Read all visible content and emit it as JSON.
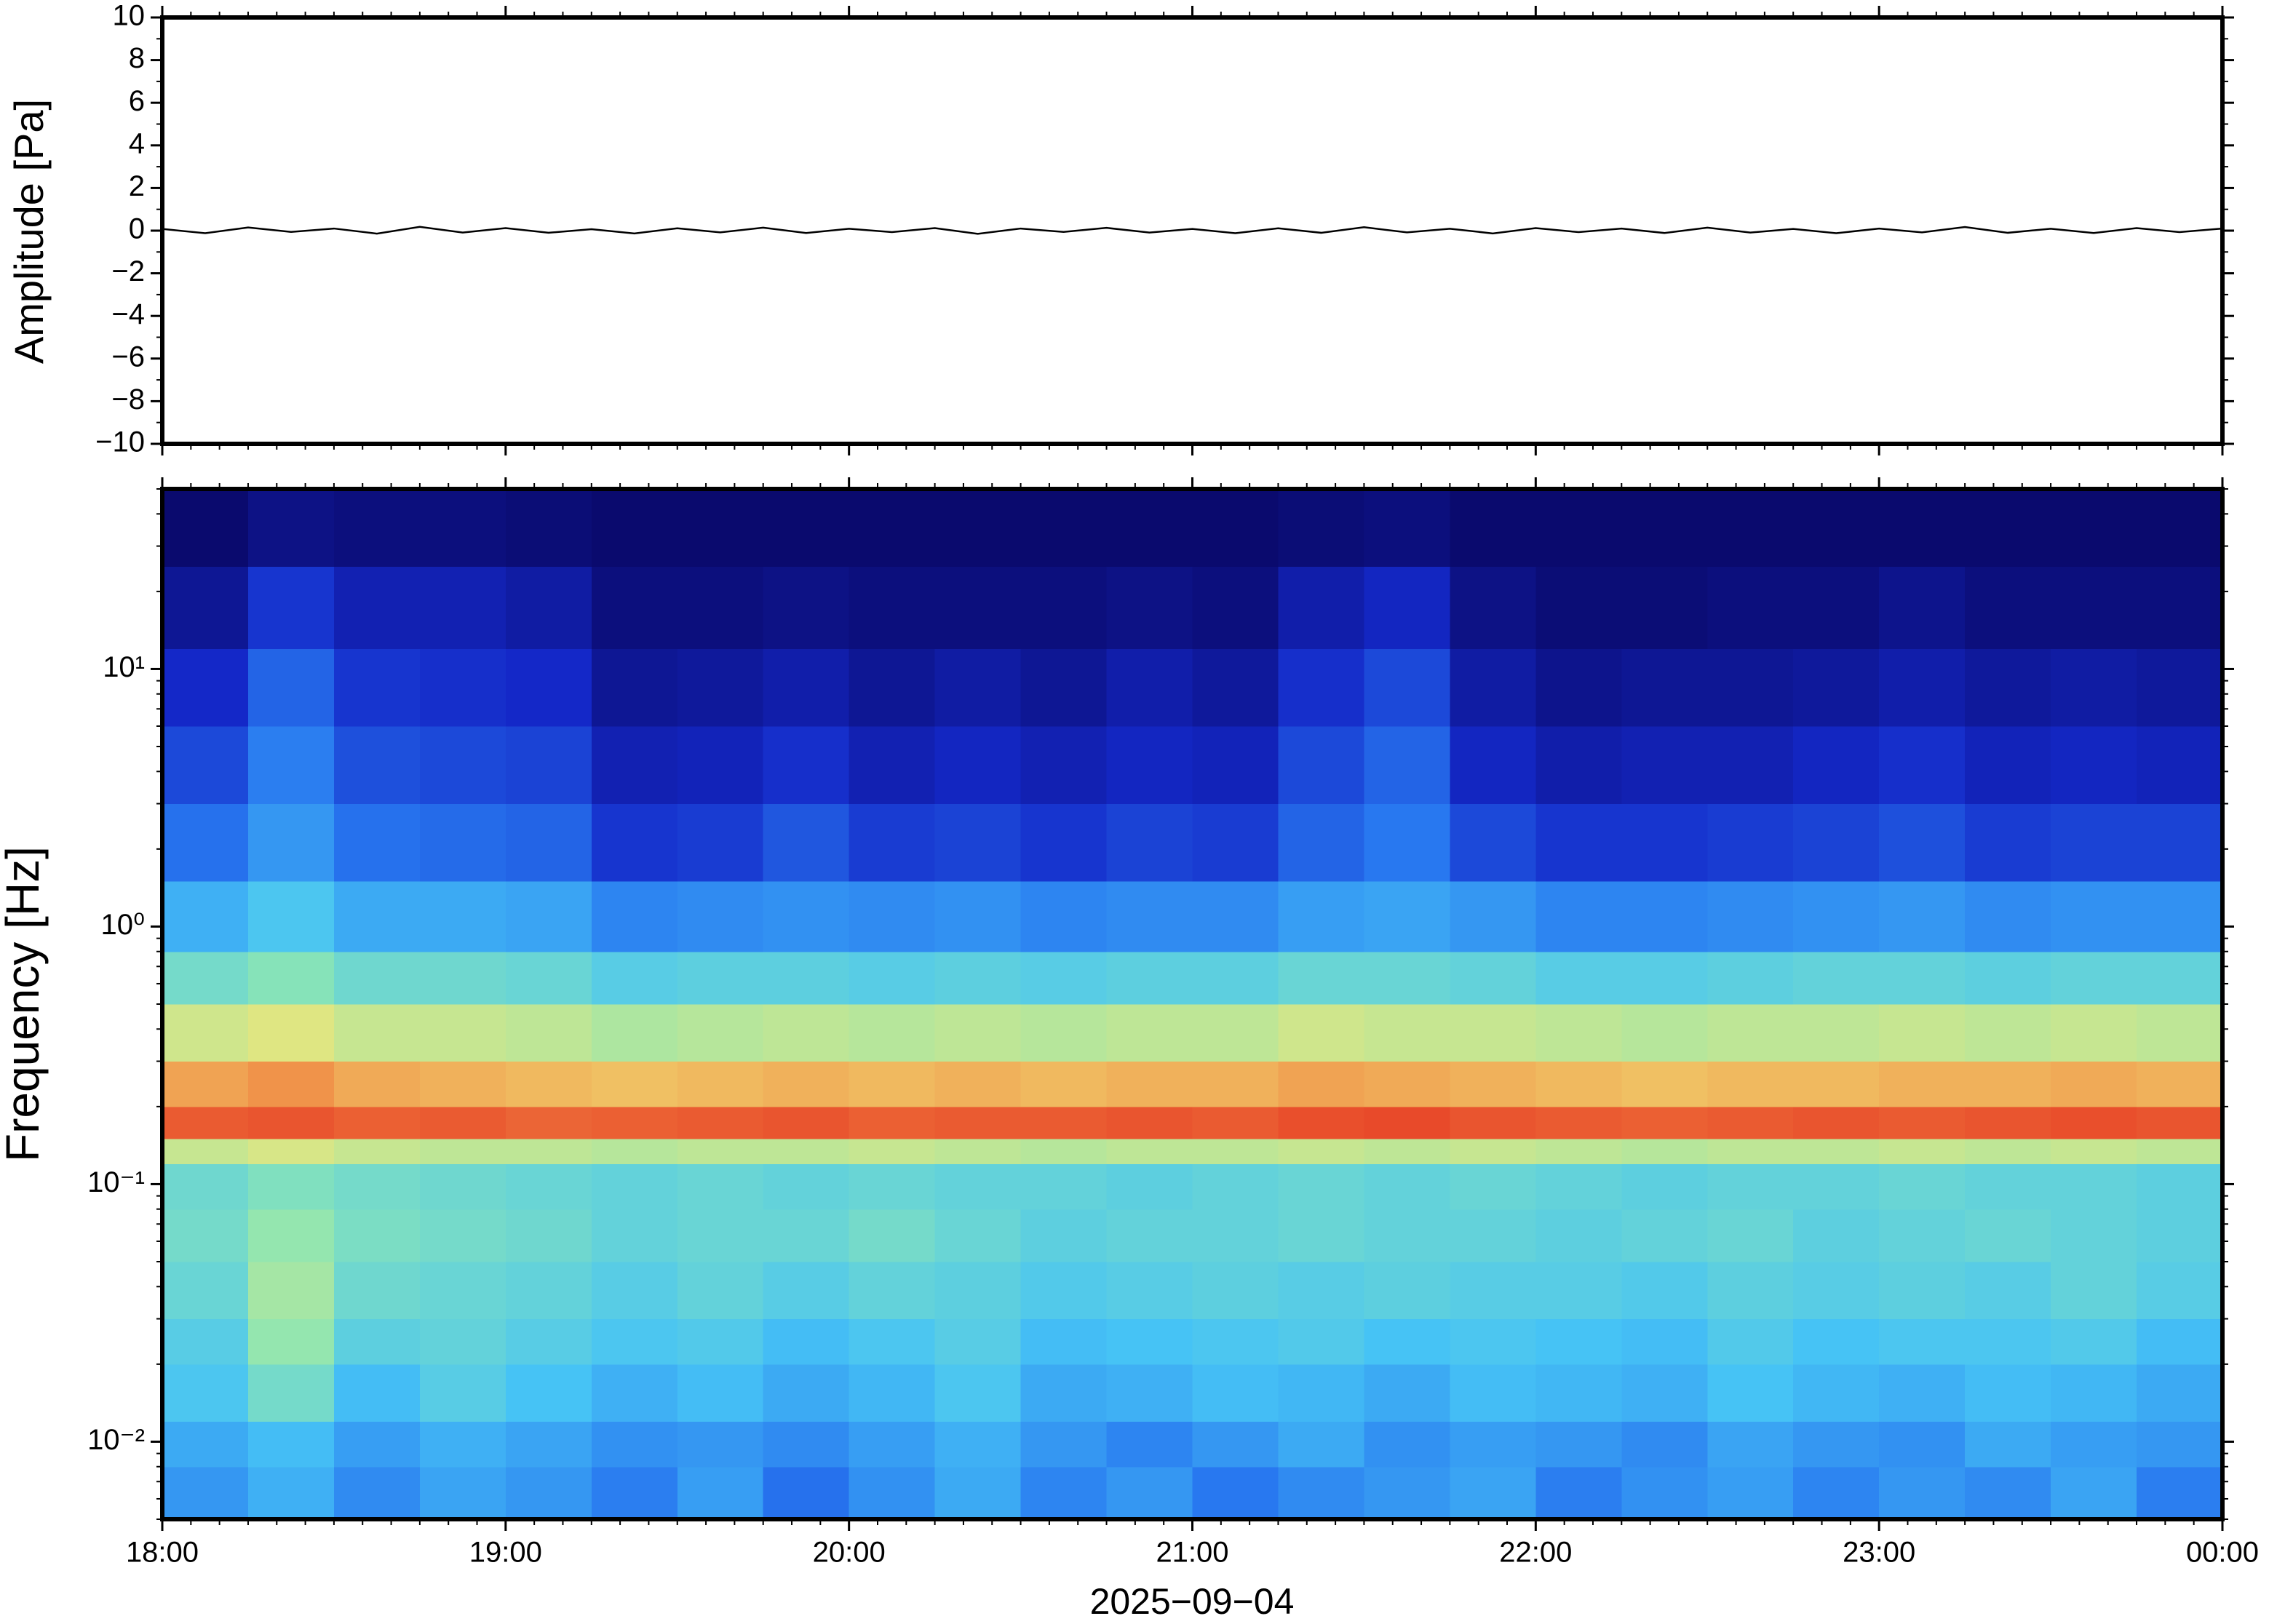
{
  "chart_data": [
    {
      "type": "line",
      "ylabel": "Amplitude [Pa]",
      "xlim": [
        18,
        24
      ],
      "xticks": [
        18,
        19,
        20,
        21,
        22,
        23,
        24
      ],
      "ylim": [
        -10,
        10
      ],
      "yticks": [
        {
          "value": -10,
          "label": "−10"
        },
        {
          "value": -8,
          "label": "−8"
        },
        {
          "value": -6,
          "label": "−6"
        },
        {
          "value": -4,
          "label": "−4"
        },
        {
          "value": -2,
          "label": "−2"
        },
        0,
        2,
        4,
        6,
        8,
        10
      ],
      "x": [
        18,
        18.125,
        18.25,
        18.375,
        18.5,
        18.625,
        18.75,
        18.875,
        19,
        19.125,
        19.25,
        19.375,
        19.5,
        19.625,
        19.75,
        19.875,
        20,
        20.125,
        20.25,
        20.375,
        20.5,
        20.625,
        20.75,
        20.875,
        21,
        21.125,
        21.25,
        21.375,
        21.5,
        21.625,
        21.75,
        21.875,
        22,
        22.125,
        22.25,
        22.375,
        22.5,
        22.625,
        22.75,
        22.875,
        23,
        23.125,
        23.25,
        23.375,
        23.5,
        23.625,
        23.75,
        23.875,
        24
      ],
      "series": [
        {
          "color": "#000000",
          "values": [
            0.08,
            -0.12,
            0.15,
            -0.06,
            0.1,
            -0.14,
            0.18,
            -0.09,
            0.12,
            -0.1,
            0.07,
            -0.13,
            0.11,
            -0.08,
            0.14,
            -0.11,
            0.09,
            -0.07,
            0.12,
            -0.15,
            0.1,
            -0.06,
            0.13,
            -0.09,
            0.08,
            -0.12,
            0.11,
            -0.1,
            0.16,
            -0.08,
            0.09,
            -0.13,
            0.12,
            -0.07,
            0.1,
            -0.11,
            0.14,
            -0.09,
            0.08,
            -0.12,
            0.1,
            -0.08,
            0.17,
            -0.1,
            0.09,
            -0.11,
            0.12,
            -0.07,
            0.1
          ]
        }
      ]
    },
    {
      "type": "heatmap",
      "ylabel": "Frequency [Hz]",
      "xlabel": "2025−09−04",
      "xlim": [
        18,
        24
      ],
      "xticks": [
        {
          "value": 18,
          "label": "18:00"
        },
        {
          "value": 19,
          "label": "19:00"
        },
        {
          "value": 20,
          "label": "20:00"
        },
        {
          "value": 21,
          "label": "21:00"
        },
        {
          "value": 22,
          "label": "22:00"
        },
        {
          "value": 23,
          "label": "23:00"
        },
        {
          "value": 24,
          "label": "00:00"
        }
      ],
      "ylim": [
        0.005,
        50
      ],
      "yscale": "log",
      "yticks": [
        {
          "value": 0.01,
          "label": "10⁻²"
        },
        {
          "value": 0.1,
          "label": "10⁻¹"
        },
        {
          "value": 1,
          "label": "10⁰"
        },
        {
          "value": 10,
          "label": "10¹"
        }
      ],
      "colormap": [
        "#0a0a6e",
        "#1428c8",
        "#2878f0",
        "#46c3f5",
        "#8ce6b4",
        "#f0e678",
        "#f08c46",
        "#e84a2a"
      ],
      "x_edges": [
        18,
        18.25,
        18.5,
        18.75,
        19,
        19.25,
        19.5,
        19.75,
        20,
        20.25,
        20.5,
        20.75,
        21,
        21.25,
        21.5,
        21.75,
        22,
        22.25,
        22.5,
        22.75,
        23,
        23.25,
        23.5,
        23.75,
        24
      ],
      "y_edges": [
        0.005,
        0.008,
        0.012,
        0.02,
        0.03,
        0.05,
        0.08,
        0.12,
        0.15,
        0.2,
        0.3,
        0.5,
        0.8,
        1.5,
        3,
        6,
        12,
        25,
        50
      ],
      "z": [
        [
          0.3,
          0.34,
          0.28,
          0.32,
          0.3,
          0.26,
          0.31,
          0.24,
          0.29,
          0.33,
          0.27,
          0.3,
          0.25,
          0.28,
          0.3,
          0.32,
          0.26,
          0.29,
          0.31,
          0.27,
          0.3,
          0.28,
          0.32,
          0.26
        ],
        [
          0.33,
          0.36,
          0.31,
          0.34,
          0.32,
          0.29,
          0.3,
          0.28,
          0.31,
          0.34,
          0.3,
          0.27,
          0.3,
          0.33,
          0.29,
          0.31,
          0.3,
          0.28,
          0.32,
          0.3,
          0.29,
          0.33,
          0.31,
          0.3
        ],
        [
          0.38,
          0.45,
          0.36,
          0.4,
          0.37,
          0.34,
          0.36,
          0.33,
          0.35,
          0.38,
          0.33,
          0.34,
          0.36,
          0.35,
          0.33,
          0.36,
          0.35,
          0.34,
          0.37,
          0.35,
          0.34,
          0.36,
          0.35,
          0.33
        ],
        [
          0.4,
          0.5,
          0.41,
          0.42,
          0.4,
          0.38,
          0.39,
          0.36,
          0.38,
          0.4,
          0.36,
          0.37,
          0.38,
          0.39,
          0.37,
          0.38,
          0.37,
          0.36,
          0.39,
          0.37,
          0.38,
          0.38,
          0.39,
          0.36
        ],
        [
          0.43,
          0.52,
          0.44,
          0.43,
          0.42,
          0.4,
          0.42,
          0.4,
          0.42,
          0.41,
          0.39,
          0.4,
          0.41,
          0.4,
          0.41,
          0.4,
          0.4,
          0.39,
          0.41,
          0.4,
          0.41,
          0.4,
          0.42,
          0.4
        ],
        [
          0.45,
          0.5,
          0.46,
          0.45,
          0.44,
          0.42,
          0.43,
          0.43,
          0.45,
          0.43,
          0.41,
          0.42,
          0.42,
          0.43,
          0.42,
          0.42,
          0.41,
          0.42,
          0.43,
          0.41,
          0.42,
          0.43,
          0.42,
          0.41
        ],
        [
          0.44,
          0.47,
          0.45,
          0.44,
          0.43,
          0.42,
          0.43,
          0.42,
          0.43,
          0.42,
          0.42,
          0.41,
          0.42,
          0.43,
          0.42,
          0.43,
          0.42,
          0.41,
          0.42,
          0.42,
          0.43,
          0.42,
          0.42,
          0.41
        ],
        [
          0.56,
          0.58,
          0.56,
          0.55,
          0.55,
          0.54,
          0.55,
          0.55,
          0.56,
          0.55,
          0.54,
          0.55,
          0.55,
          0.56,
          0.55,
          0.56,
          0.55,
          0.54,
          0.55,
          0.55,
          0.56,
          0.55,
          0.56,
          0.55
        ],
        [
          0.82,
          0.83,
          0.81,
          0.82,
          0.8,
          0.81,
          0.82,
          0.83,
          0.81,
          0.82,
          0.82,
          0.83,
          0.82,
          0.84,
          0.85,
          0.83,
          0.82,
          0.81,
          0.82,
          0.83,
          0.82,
          0.83,
          0.84,
          0.83
        ],
        [
          0.7,
          0.72,
          0.69,
          0.68,
          0.67,
          0.66,
          0.67,
          0.68,
          0.67,
          0.68,
          0.67,
          0.68,
          0.68,
          0.7,
          0.69,
          0.68,
          0.67,
          0.66,
          0.67,
          0.67,
          0.68,
          0.68,
          0.69,
          0.68
        ],
        [
          0.57,
          0.59,
          0.56,
          0.56,
          0.55,
          0.53,
          0.54,
          0.55,
          0.54,
          0.55,
          0.54,
          0.55,
          0.55,
          0.57,
          0.56,
          0.56,
          0.55,
          0.54,
          0.55,
          0.55,
          0.56,
          0.55,
          0.56,
          0.55
        ],
        [
          0.45,
          0.48,
          0.44,
          0.44,
          0.43,
          0.4,
          0.41,
          0.41,
          0.4,
          0.41,
          0.4,
          0.41,
          0.41,
          0.43,
          0.43,
          0.42,
          0.4,
          0.4,
          0.41,
          0.42,
          0.42,
          0.41,
          0.42,
          0.42
        ],
        [
          0.34,
          0.38,
          0.33,
          0.33,
          0.32,
          0.27,
          0.28,
          0.29,
          0.28,
          0.29,
          0.27,
          0.28,
          0.28,
          0.31,
          0.32,
          0.3,
          0.27,
          0.27,
          0.28,
          0.29,
          0.3,
          0.28,
          0.29,
          0.29
        ],
        [
          0.24,
          0.3,
          0.24,
          0.23,
          0.22,
          0.15,
          0.16,
          0.2,
          0.16,
          0.17,
          0.15,
          0.17,
          0.16,
          0.22,
          0.25,
          0.18,
          0.15,
          0.15,
          0.16,
          0.17,
          0.19,
          0.16,
          0.17,
          0.17
        ],
        [
          0.18,
          0.26,
          0.19,
          0.18,
          0.17,
          0.1,
          0.11,
          0.14,
          0.1,
          0.12,
          0.1,
          0.12,
          0.11,
          0.18,
          0.22,
          0.12,
          0.09,
          0.1,
          0.1,
          0.12,
          0.14,
          0.11,
          0.12,
          0.11
        ],
        [
          0.13,
          0.22,
          0.15,
          0.14,
          0.13,
          0.06,
          0.07,
          0.09,
          0.06,
          0.08,
          0.06,
          0.09,
          0.07,
          0.14,
          0.18,
          0.08,
          0.05,
          0.06,
          0.06,
          0.07,
          0.09,
          0.07,
          0.08,
          0.07
        ],
        [
          0.06,
          0.15,
          0.1,
          0.1,
          0.08,
          0.03,
          0.03,
          0.04,
          0.03,
          0.03,
          0.03,
          0.04,
          0.03,
          0.09,
          0.12,
          0.04,
          0.02,
          0.02,
          0.03,
          0.03,
          0.05,
          0.03,
          0.03,
          0.03
        ],
        [
          0.01,
          0.04,
          0.03,
          0.03,
          0.02,
          0.01,
          0.01,
          0.01,
          0.01,
          0.01,
          0.01,
          0.01,
          0.01,
          0.02,
          0.03,
          0.01,
          0.01,
          0.01,
          0.01,
          0.01,
          0.01,
          0.01,
          0.01,
          0.01
        ]
      ]
    }
  ]
}
